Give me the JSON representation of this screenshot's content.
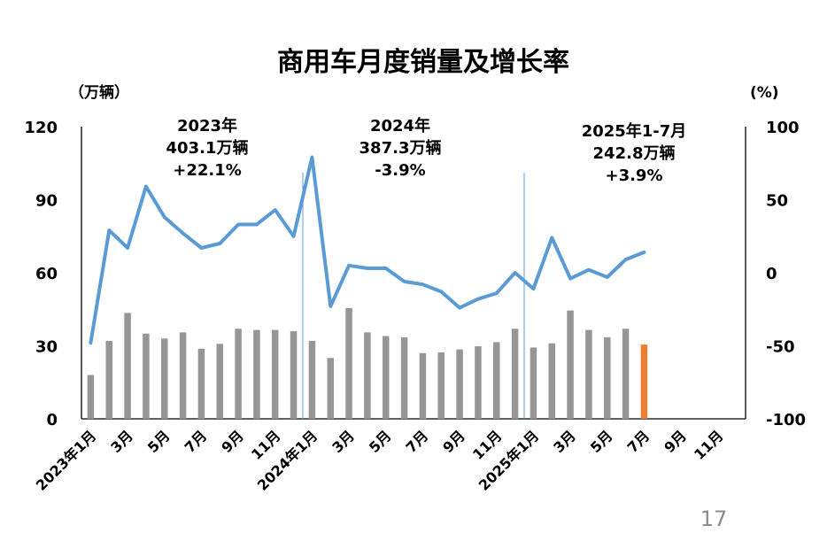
{
  "page_number": "17",
  "colors": {
    "bar": "#969696",
    "bar_highlight": "#ed7d31",
    "line": "#5b9bd5",
    "divider": "#5b9bd5",
    "axis": "#000000",
    "negative": "#e00000"
  },
  "chart_data": {
    "type": "bar",
    "title": "商用车月度销量及增长率",
    "left_unit": "（万辆）",
    "right_unit": "(%)",
    "ylim": [
      0,
      120
    ],
    "y_ticks": [
      0,
      30,
      60,
      90,
      120
    ],
    "y2lim": [
      -100,
      100
    ],
    "y2_ticks": [
      -100,
      -50,
      0,
      50,
      100
    ],
    "grid": false,
    "x_tick_labels": [
      {
        "label": "2023年1月",
        "index": 0
      },
      {
        "label": "3月",
        "index": 2
      },
      {
        "label": "5月",
        "index": 4
      },
      {
        "label": "7月",
        "index": 6
      },
      {
        "label": "9月",
        "index": 8
      },
      {
        "label": "11月",
        "index": 10
      },
      {
        "label": "2024年1月",
        "index": 12
      },
      {
        "label": "3月",
        "index": 14
      },
      {
        "label": "5月",
        "index": 16
      },
      {
        "label": "7月",
        "index": 18
      },
      {
        "label": "9月",
        "index": 20
      },
      {
        "label": "11月",
        "index": 22
      },
      {
        "label": "2025年1月",
        "index": 24
      },
      {
        "label": "3月",
        "index": 26
      },
      {
        "label": "5月",
        "index": 28
      },
      {
        "label": "7月",
        "index": 30
      },
      {
        "label": "9月",
        "index": 32
      },
      {
        "label": "11月",
        "index": 34
      }
    ],
    "category_count": 36,
    "highlight_index": 30,
    "series": [
      {
        "type": "bar",
        "axis": "left",
        "values": [
          18,
          32,
          43.5,
          35,
          33,
          35.5,
          28.8,
          30.8,
          37,
          36.5,
          36.5,
          36,
          32,
          25,
          45.5,
          35.5,
          34,
          33.5,
          27,
          27.3,
          28.5,
          29.8,
          31.5,
          37,
          29.3,
          31,
          44.5,
          36.5,
          33.5,
          37,
          30.5
        ]
      },
      {
        "type": "line",
        "axis": "right",
        "values": [
          -48,
          29,
          17,
          59,
          38,
          27,
          17,
          20,
          33,
          33,
          43,
          25,
          79,
          -23,
          5,
          3,
          3,
          -6,
          -8,
          -13,
          -24,
          -18,
          -14,
          0,
          -11,
          24,
          -4,
          2,
          -3,
          9,
          14
        ]
      }
    ],
    "dividers_after_index": [
      11,
      23
    ],
    "annotations": [
      {
        "year": "2023年",
        "total": "403.1万辆",
        "growth": "+22.1%",
        "negative": false
      },
      {
        "year": "2024年",
        "total": "387.3万辆",
        "growth": "-3.9%",
        "negative": true
      },
      {
        "year": "2025年1-7月",
        "total": "242.8万辆",
        "growth": "+3.9%",
        "negative": false
      }
    ]
  }
}
